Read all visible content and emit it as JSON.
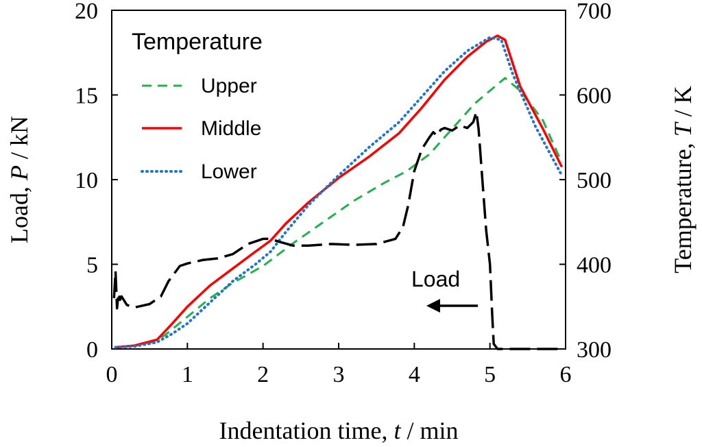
{
  "chart_data": {
    "type": "line",
    "x_axis": {
      "label_prefix": "Indentation time, ",
      "label_var": "t",
      "label_suffix": " / min",
      "range": [
        0,
        6
      ],
      "ticks": [
        0,
        1,
        2,
        3,
        4,
        5,
        6
      ]
    },
    "y_left": {
      "label_prefix": "Load, ",
      "label_var": "P",
      "label_suffix": " / kN",
      "range": [
        0,
        20
      ],
      "ticks": [
        0,
        5,
        10,
        15,
        20
      ]
    },
    "y_right": {
      "label_prefix": "Temperature, ",
      "label_var": "T",
      "label_suffix": " / K",
      "range": [
        300,
        700
      ],
      "ticks": [
        300,
        400,
        500,
        600,
        700
      ]
    },
    "legend": {
      "title": "Temperature",
      "position": "top-left",
      "entries": [
        "Upper",
        "Middle",
        "Lower"
      ]
    },
    "annotation": {
      "text": "Load",
      "points_to": "left axis"
    },
    "series": [
      {
        "name": "Upper",
        "axis": "right",
        "color": "#22b14c",
        "style": "dashed",
        "x": [
          0.05,
          0.3,
          0.5,
          0.7,
          1.0,
          1.3,
          1.6,
          2.0,
          2.4,
          2.8,
          3.2,
          3.6,
          3.9,
          4.2,
          4.5,
          4.8,
          5.0,
          5.2,
          5.4,
          5.7,
          5.95
        ],
        "y": [
          302,
          304,
          307,
          316,
          338,
          360,
          378,
          398,
          425,
          450,
          475,
          496,
          510,
          530,
          560,
          590,
          605,
          620,
          605,
          570,
          520
        ]
      },
      {
        "name": "Middle",
        "axis": "right",
        "color": "#ff0000",
        "style": "solid",
        "x": [
          0.05,
          0.3,
          0.6,
          0.8,
          1.0,
          1.3,
          1.6,
          1.9,
          2.1,
          2.3,
          2.6,
          3.0,
          3.4,
          3.8,
          4.1,
          4.4,
          4.7,
          4.95,
          5.1,
          5.2,
          5.4,
          5.7,
          5.95
        ],
        "y": [
          302,
          304,
          311,
          330,
          350,
          375,
          395,
          415,
          428,
          448,
          473,
          502,
          527,
          555,
          585,
          618,
          645,
          663,
          670,
          665,
          610,
          560,
          515
        ]
      },
      {
        "name": "Lower",
        "axis": "right",
        "color": "#1f77c9",
        "style": "dotted",
        "x": [
          0.05,
          0.3,
          0.6,
          0.8,
          1.0,
          1.3,
          1.6,
          1.9,
          2.1,
          2.3,
          2.6,
          3.0,
          3.4,
          3.8,
          4.1,
          4.4,
          4.7,
          5.0,
          5.15,
          5.3,
          5.6,
          5.95
        ],
        "y": [
          302,
          303,
          308,
          318,
          330,
          355,
          380,
          400,
          415,
          438,
          470,
          505,
          538,
          568,
          598,
          628,
          652,
          668,
          665,
          625,
          563,
          505
        ]
      },
      {
        "name": "Load",
        "axis": "left",
        "color": "#000000",
        "style": "longdash",
        "x": [
          0.03,
          0.05,
          0.07,
          0.09,
          0.11,
          0.13,
          0.2,
          0.3,
          0.5,
          0.65,
          0.75,
          0.9,
          1.0,
          1.2,
          1.4,
          1.6,
          1.8,
          2.0,
          2.1,
          2.2,
          2.4,
          2.6,
          2.9,
          3.2,
          3.5,
          3.75,
          3.85,
          3.92,
          4.0,
          4.1,
          4.2,
          4.25,
          4.3,
          4.35,
          4.4,
          4.5,
          4.6,
          4.7,
          4.78,
          4.82,
          4.85,
          4.9,
          4.95,
          5.0,
          5.03,
          5.05,
          5.1,
          5.5,
          5.95
        ],
        "y": [
          3.0,
          4.6,
          2.4,
          3.3,
          2.9,
          3.1,
          2.6,
          2.45,
          2.65,
          3.1,
          4.0,
          4.9,
          5.05,
          5.25,
          5.35,
          5.6,
          6.2,
          6.5,
          6.5,
          6.35,
          6.1,
          6.1,
          6.2,
          6.15,
          6.2,
          6.5,
          7.2,
          8.5,
          10.5,
          11.8,
          12.5,
          12.8,
          12.6,
          12.95,
          13.05,
          12.9,
          13.2,
          13.05,
          13.4,
          14.0,
          13.0,
          10.0,
          7.0,
          5.0,
          2.0,
          0.3,
          0.0,
          0.0,
          0.0
        ]
      }
    ]
  }
}
